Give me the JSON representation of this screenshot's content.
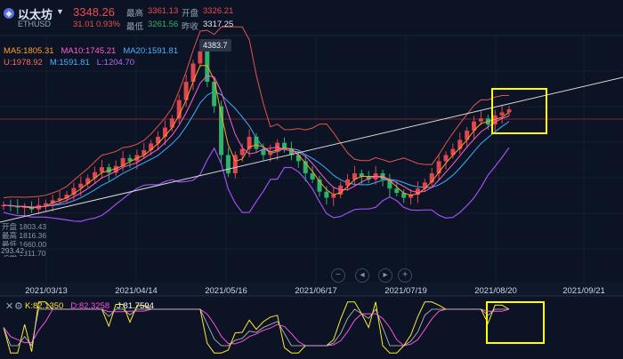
{
  "header": {
    "name": "以太坊",
    "symbol": "ETHUSD",
    "price": "3348.26",
    "change": "31.01",
    "change_pct": "0.93%",
    "high_label": "最高",
    "high_value": "3361.13",
    "open_label": "开盘",
    "open_value": "3326.21",
    "low_label": "最低",
    "low_value": "3261.56",
    "prev_label": "昨收",
    "prev_value": "3317.25"
  },
  "indicators": {
    "ma5": "MA5:1805.31",
    "ma10": "MA10:1745.21",
    "ma20": "MA20:1591.81",
    "boll_u": "U:1978.92",
    "boll_m": "M:1591.81",
    "boll_l": "L:1204.70",
    "kdj_k": "K:82.1350",
    "kdj_d": "D:82.3258",
    "kdj_j": "J:81.7594"
  },
  "ohlc_box": {
    "open": "开盘 1803.43",
    "high": "最高 1816.36",
    "low": "最低 1660.00",
    "close": "收盘 1811.70"
  },
  "price_tag": "293.42",
  "peak_label": "4383.7",
  "controls": [
    "−",
    "◂",
    "▸",
    "+"
  ],
  "colors": {
    "background": "#0b1324",
    "up": "#e0464e",
    "down": "#2fb36a",
    "ma5": "#ff9f2e",
    "ma10": "#ff5fd0",
    "ma20": "#46b3ff",
    "boll_band": "#e0574b",
    "boll_lower": "#a24ff0",
    "boll_mid": "#3ab0ff",
    "trendline": "#d8d8d8",
    "highlight": "#ffff00",
    "kdj_k": "#ffe833",
    "kdj_d": "#ff4fe0",
    "kdj_j": "#ffffff"
  },
  "chart_data": {
    "type": "candlestick",
    "x_ticks": [
      "2021/03/13",
      "2021/04/14",
      "2021/05/16",
      "2021/06/17",
      "2021/07/19",
      "2021/08/20",
      "2021/09/21"
    ],
    "close_series": [
      1780,
      1760,
      1740,
      1750,
      1710,
      1780,
      1810,
      1860,
      1890,
      1950,
      2060,
      2130,
      2220,
      2320,
      2400,
      2310,
      2420,
      2550,
      2500,
      2600,
      2680,
      2790,
      2900,
      3050,
      3200,
      3500,
      3800,
      4100,
      4300,
      3800,
      3400,
      2600,
      2300,
      2600,
      2700,
      2900,
      2700,
      2600,
      2650,
      2800,
      2700,
      2600,
      2500,
      2300,
      2200,
      2000,
      1900,
      1950,
      2100,
      2200,
      2300,
      2250,
      2200,
      2300,
      2200,
      2050,
      1980,
      1900,
      1950,
      2050,
      2150,
      2300,
      2500,
      2600,
      2700,
      2850,
      3000,
      3150,
      3200,
      3100,
      3250,
      3300,
      3348
    ]
  }
}
